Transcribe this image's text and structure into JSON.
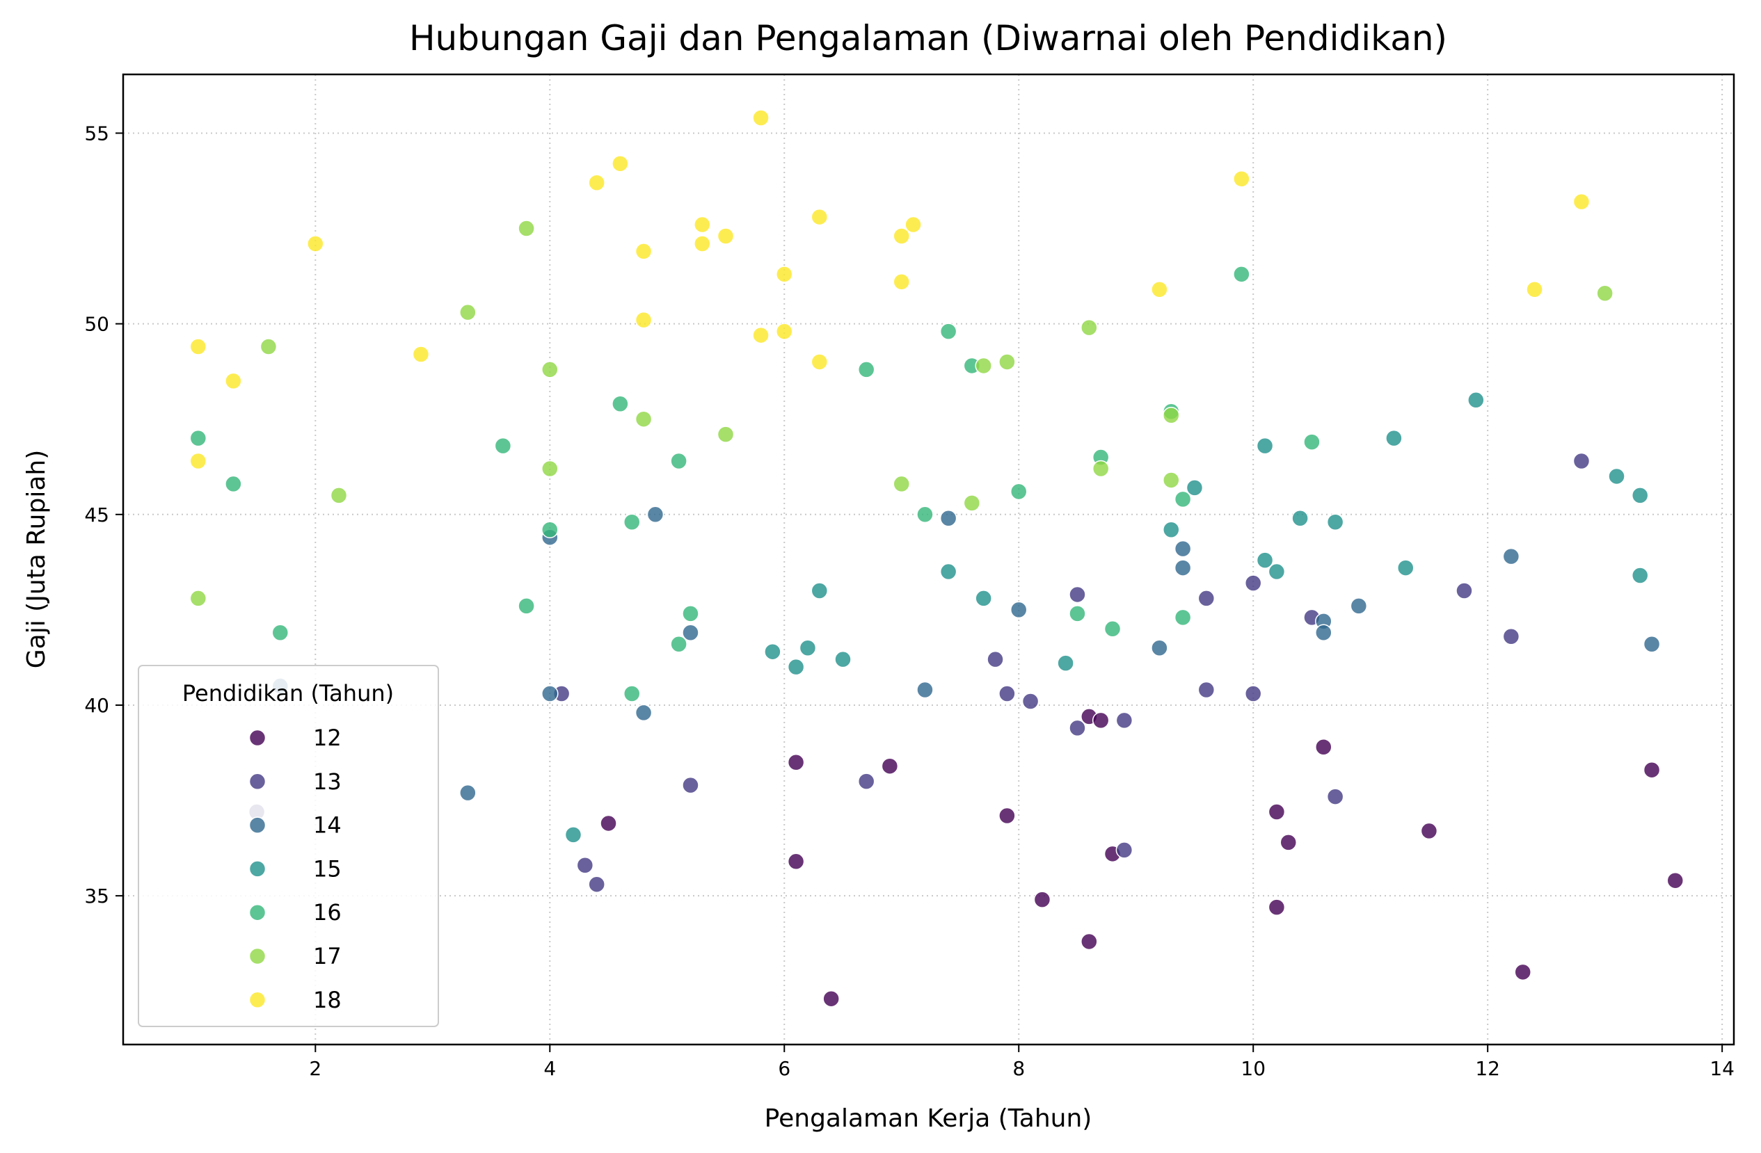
{
  "chart_data": {
    "type": "scatter",
    "title": "Hubungan Gaji dan Pengalaman (Diwarnai oleh Pendidikan)",
    "xlabel": "Pengalaman Kerja (Tahun)",
    "ylabel": "Gaji (Juta Rupiah)",
    "xlim": [
      0.36,
      14.1
    ],
    "ylim": [
      31.1,
      56.54
    ],
    "xticks": [
      2,
      4,
      6,
      8,
      10,
      12,
      14
    ],
    "yticks": [
      35,
      40,
      45,
      50,
      55
    ],
    "grid": true,
    "legend": {
      "title": "Pendidikan (Tahun)",
      "placement": "lower-left",
      "entries": [
        "12",
        "13",
        "14",
        "15",
        "16",
        "17",
        "18"
      ]
    },
    "colors": {
      "12": "#440154",
      "13": "#443983",
      "14": "#31688e",
      "15": "#21918c",
      "16": "#35b779",
      "17": "#90d743",
      "18": "#fde725"
    },
    "series": [
      {
        "name": "12",
        "points": [
          [
            4.5,
            36.9
          ],
          [
            6.1,
            38.5
          ],
          [
            6.1,
            35.9
          ],
          [
            6.4,
            32.3
          ],
          [
            6.9,
            38.4
          ],
          [
            7.9,
            37.1
          ],
          [
            8.2,
            34.9
          ],
          [
            8.6,
            39.7
          ],
          [
            8.6,
            33.8
          ],
          [
            8.7,
            39.6
          ],
          [
            8.8,
            36.1
          ],
          [
            10.2,
            37.2
          ],
          [
            10.2,
            34.7
          ],
          [
            10.3,
            36.4
          ],
          [
            10.6,
            38.9
          ],
          [
            11.5,
            36.7
          ],
          [
            12.3,
            33.0
          ],
          [
            13.4,
            38.3
          ],
          [
            13.6,
            35.4
          ]
        ]
      },
      {
        "name": "13",
        "points": [
          [
            1.5,
            37.2
          ],
          [
            4.1,
            40.3
          ],
          [
            4.3,
            35.8
          ],
          [
            4.4,
            35.3
          ],
          [
            5.2,
            37.9
          ],
          [
            6.7,
            38.0
          ],
          [
            7.8,
            41.2
          ],
          [
            7.9,
            40.3
          ],
          [
            8.1,
            40.1
          ],
          [
            8.5,
            42.9
          ],
          [
            8.5,
            39.4
          ],
          [
            8.9,
            39.6
          ],
          [
            8.9,
            36.2
          ],
          [
            9.6,
            42.8
          ],
          [
            9.6,
            40.4
          ],
          [
            10.0,
            43.2
          ],
          [
            10.0,
            40.3
          ],
          [
            10.5,
            42.3
          ],
          [
            10.7,
            37.6
          ],
          [
            11.8,
            43.0
          ],
          [
            12.2,
            41.8
          ],
          [
            12.8,
            46.4
          ]
        ]
      },
      {
        "name": "14",
        "points": [
          [
            1.7,
            40.5
          ],
          [
            3.3,
            37.7
          ],
          [
            4.0,
            44.4
          ],
          [
            4.0,
            40.3
          ],
          [
            4.8,
            39.8
          ],
          [
            4.9,
            45.0
          ],
          [
            5.2,
            41.9
          ],
          [
            7.2,
            40.4
          ],
          [
            7.4,
            44.9
          ],
          [
            8.0,
            42.5
          ],
          [
            9.2,
            41.5
          ],
          [
            9.4,
            44.1
          ],
          [
            9.4,
            43.6
          ],
          [
            10.6,
            42.2
          ],
          [
            10.6,
            41.9
          ],
          [
            10.9,
            42.6
          ],
          [
            12.2,
            43.9
          ],
          [
            13.4,
            41.6
          ]
        ]
      },
      {
        "name": "15",
        "points": [
          [
            4.2,
            36.6
          ],
          [
            5.9,
            41.4
          ],
          [
            6.1,
            41.0
          ],
          [
            6.2,
            41.5
          ],
          [
            6.3,
            43.0
          ],
          [
            6.5,
            41.2
          ],
          [
            7.4,
            43.5
          ],
          [
            7.7,
            42.8
          ],
          [
            8.4,
            41.1
          ],
          [
            9.3,
            44.6
          ],
          [
            9.5,
            45.7
          ],
          [
            10.1,
            46.8
          ],
          [
            10.1,
            43.8
          ],
          [
            10.2,
            43.5
          ],
          [
            10.4,
            44.9
          ],
          [
            10.7,
            44.8
          ],
          [
            11.2,
            47.0
          ],
          [
            11.3,
            43.6
          ],
          [
            11.9,
            48.0
          ],
          [
            13.1,
            46.0
          ],
          [
            13.3,
            45.5
          ],
          [
            13.3,
            43.4
          ]
        ]
      },
      {
        "name": "16",
        "points": [
          [
            1.0,
            47.0
          ],
          [
            1.3,
            45.8
          ],
          [
            1.7,
            41.9
          ],
          [
            3.6,
            46.8
          ],
          [
            3.8,
            42.6
          ],
          [
            4.0,
            44.6
          ],
          [
            4.6,
            47.9
          ],
          [
            4.7,
            44.8
          ],
          [
            4.7,
            40.3
          ],
          [
            5.1,
            46.4
          ],
          [
            5.1,
            41.6
          ],
          [
            5.2,
            42.4
          ],
          [
            6.7,
            48.8
          ],
          [
            7.2,
            45.0
          ],
          [
            7.4,
            49.8
          ],
          [
            7.6,
            48.9
          ],
          [
            8.0,
            45.6
          ],
          [
            8.5,
            42.4
          ],
          [
            8.7,
            46.5
          ],
          [
            8.8,
            42.0
          ],
          [
            9.3,
            47.7
          ],
          [
            9.4,
            45.4
          ],
          [
            9.4,
            42.3
          ],
          [
            9.9,
            51.3
          ],
          [
            10.5,
            46.9
          ]
        ]
      },
      {
        "name": "17",
        "points": [
          [
            1.0,
            42.8
          ],
          [
            1.6,
            49.4
          ],
          [
            2.2,
            45.5
          ],
          [
            3.3,
            50.3
          ],
          [
            3.8,
            52.5
          ],
          [
            4.0,
            48.8
          ],
          [
            4.0,
            46.2
          ],
          [
            4.8,
            47.5
          ],
          [
            5.5,
            47.1
          ],
          [
            7.0,
            45.8
          ],
          [
            7.6,
            45.3
          ],
          [
            7.7,
            48.9
          ],
          [
            7.9,
            49.0
          ],
          [
            8.6,
            49.9
          ],
          [
            8.7,
            46.2
          ],
          [
            9.3,
            47.6
          ],
          [
            9.3,
            45.9
          ],
          [
            13.0,
            50.8
          ]
        ]
      },
      {
        "name": "18",
        "points": [
          [
            1.0,
            49.4
          ],
          [
            1.0,
            46.4
          ],
          [
            1.3,
            48.5
          ],
          [
            2.0,
            52.1
          ],
          [
            2.9,
            49.2
          ],
          [
            4.4,
            53.7
          ],
          [
            4.6,
            54.2
          ],
          [
            4.8,
            51.9
          ],
          [
            4.8,
            50.1
          ],
          [
            5.3,
            52.6
          ],
          [
            5.3,
            52.1
          ],
          [
            5.5,
            52.3
          ],
          [
            5.8,
            55.4
          ],
          [
            5.8,
            49.7
          ],
          [
            6.0,
            51.3
          ],
          [
            6.0,
            49.8
          ],
          [
            6.3,
            52.8
          ],
          [
            6.3,
            49.0
          ],
          [
            7.0,
            52.3
          ],
          [
            7.0,
            51.1
          ],
          [
            7.1,
            52.6
          ],
          [
            9.2,
            50.9
          ],
          [
            9.9,
            53.8
          ],
          [
            12.4,
            50.9
          ],
          [
            12.8,
            53.2
          ]
        ]
      }
    ]
  }
}
